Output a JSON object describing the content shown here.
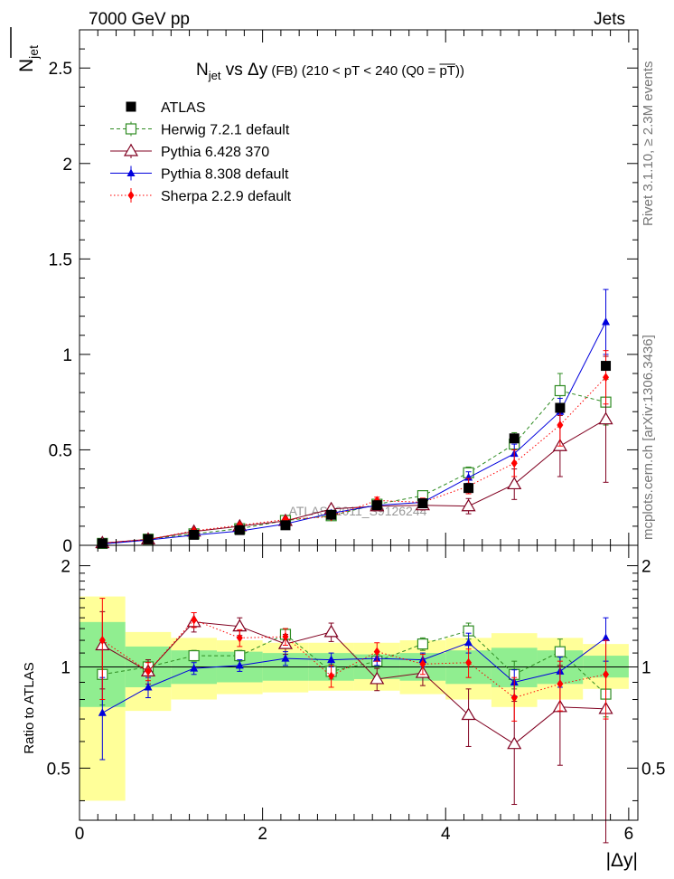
{
  "header": {
    "energy_label": "7000 GeV pp",
    "category_label": "Jets",
    "side_rivet": "Rivet 3.1.10, ≥ 2.3M events",
    "side_url": "mcplots.cern.ch [arXiv:1306.3436]",
    "watermark": "ATLAS_2011_S9126244"
  },
  "colors": {
    "atlas": "#000000",
    "herwig": "#2e8b22",
    "pythia6": "#800020",
    "pythia8": "#0000dd",
    "sherpa": "#ff0000",
    "band_outer": "#ffff99",
    "band_inner": "#90ee90"
  },
  "chart_data": [
    {
      "type": "line",
      "panel": "main",
      "title_parts": {
        "prefix": "N",
        "sub": "jet",
        "vs": " vs Δy",
        "fb": " (FB)",
        "cut": " (210 < pT < 240 (Q0 = ",
        "q0": "pT",
        "close": "))"
      },
      "ylabel_parts": {
        "main": "N",
        "sub": "jet"
      },
      "xlabel": "|Δy|",
      "xlim": [
        0,
        6.1
      ],
      "ylim": [
        0,
        2.7
      ],
      "x_ticks": [
        0,
        2,
        4,
        6
      ],
      "x_tick_labels": [
        "0",
        "2",
        "4",
        "6"
      ],
      "y_ticks": [
        0,
        0.5,
        1,
        1.5,
        2,
        2.5
      ],
      "y_tick_labels": [
        "0",
        "0.5",
        "1",
        "1.5",
        "2",
        "2.5"
      ],
      "grid": false,
      "legend_position": "top-left",
      "x": [
        0.25,
        0.75,
        1.25,
        1.75,
        2.25,
        2.75,
        3.25,
        3.75,
        4.25,
        4.75,
        5.25,
        5.75
      ],
      "series": [
        {
          "key": "atlas",
          "name": "ATLAS",
          "marker": "square-filled",
          "line": "none",
          "values": [
            0.01,
            0.032,
            0.055,
            0.08,
            0.105,
            0.16,
            0.21,
            0.22,
            0.3,
            0.56,
            0.72,
            0.94
          ]
        },
        {
          "key": "herwig",
          "name": "Herwig 7.2.1 default",
          "marker": "square-open",
          "line": "dashed",
          "values": [
            0.01,
            0.032,
            0.06,
            0.087,
            0.13,
            0.155,
            0.215,
            0.26,
            0.38,
            0.53,
            0.81,
            0.75
          ],
          "errors": [
            0.003,
            0.004,
            0.005,
            0.006,
            0.008,
            0.01,
            0.014,
            0.018,
            0.03,
            0.06,
            0.09,
            0.12
          ]
        },
        {
          "key": "pythia6",
          "name": "Pythia 6.428 370",
          "marker": "triangle-open",
          "line": "solid",
          "values": [
            0.012,
            0.031,
            0.072,
            0.1,
            0.128,
            0.19,
            0.205,
            0.21,
            0.205,
            0.32,
            0.52,
            0.66
          ],
          "errors": [
            0.004,
            0.005,
            0.007,
            0.009,
            0.012,
            0.015,
            0.02,
            0.025,
            0.04,
            0.08,
            0.16,
            0.33
          ]
        },
        {
          "key": "pythia8",
          "name": "Pythia 8.308 default",
          "marker": "triangle-filled",
          "line": "solid",
          "values": [
            0.007,
            0.028,
            0.053,
            0.075,
            0.112,
            0.168,
            0.21,
            0.225,
            0.355,
            0.48,
            0.7,
            1.17
          ],
          "errors": [
            0.002,
            0.003,
            0.004,
            0.005,
            0.007,
            0.01,
            0.013,
            0.017,
            0.03,
            0.05,
            0.07,
            0.17
          ]
        },
        {
          "key": "sherpa",
          "name": "Sherpa 2.2.9 default",
          "marker": "diamond-filled",
          "line": "dotted",
          "values": [
            0.012,
            0.031,
            0.076,
            0.105,
            0.135,
            0.15,
            0.235,
            0.225,
            0.31,
            0.43,
            0.63,
            0.88
          ],
          "errors": [
            0.003,
            0.004,
            0.006,
            0.008,
            0.01,
            0.012,
            0.017,
            0.022,
            0.04,
            0.07,
            0.11,
            0.14
          ]
        }
      ]
    },
    {
      "type": "line",
      "panel": "ratio",
      "ylabel": "Ratio to ATLAS",
      "xlim": [
        0,
        6.1
      ],
      "ylim": [
        0.35,
        2.3
      ],
      "y_ticks": [
        0.5,
        1,
        2
      ],
      "y_tick_labels": [
        "0.5",
        "1",
        "2"
      ],
      "reference": 1,
      "bins": [
        0,
        0.5,
        1,
        1.5,
        2,
        2.5,
        3,
        3.5,
        4,
        4.5,
        5,
        5.5,
        6
      ],
      "band_outer": [
        [
          0.4,
          1.62
        ],
        [
          0.74,
          1.27
        ],
        [
          0.8,
          1.22
        ],
        [
          0.83,
          1.2
        ],
        [
          0.84,
          1.18
        ],
        [
          0.85,
          1.18
        ],
        [
          0.85,
          1.18
        ],
        [
          0.83,
          1.2
        ],
        [
          0.8,
          1.22
        ],
        [
          0.76,
          1.26
        ],
        [
          0.8,
          1.22
        ],
        [
          0.86,
          1.17
        ]
      ],
      "band_inner": [
        [
          0.76,
          1.36
        ],
        [
          0.87,
          1.15
        ],
        [
          0.89,
          1.12
        ],
        [
          0.9,
          1.11
        ],
        [
          0.91,
          1.1
        ],
        [
          0.91,
          1.1
        ],
        [
          0.92,
          1.09
        ],
        [
          0.91,
          1.1
        ],
        [
          0.89,
          1.12
        ],
        [
          0.87,
          1.14
        ],
        [
          0.89,
          1.12
        ],
        [
          0.93,
          1.08
        ]
      ],
      "x": [
        0.25,
        0.75,
        1.25,
        1.75,
        2.25,
        2.75,
        3.25,
        3.75,
        4.25,
        4.75,
        5.25,
        5.75
      ],
      "series": [
        {
          "key": "herwig",
          "name": "Herwig 7.2.1 default",
          "marker": "square-open",
          "line": "dashed",
          "values": [
            0.95,
            1.0,
            1.08,
            1.08,
            1.25,
            0.97,
            1.04,
            1.17,
            1.28,
            0.95,
            1.11,
            0.83
          ],
          "errors": [
            0.18,
            0.05,
            0.04,
            0.04,
            0.05,
            0.05,
            0.05,
            0.05,
            0.07,
            0.09,
            0.1,
            0.12
          ]
        },
        {
          "key": "pythia6",
          "name": "Pythia 6.428 370",
          "marker": "triangle-open",
          "line": "solid",
          "values": [
            1.16,
            0.97,
            1.36,
            1.32,
            1.17,
            1.27,
            0.92,
            0.96,
            0.72,
            0.59,
            0.76,
            0.75
          ],
          "errors": [
            0.3,
            0.08,
            0.09,
            0.08,
            0.08,
            0.08,
            0.07,
            0.08,
            0.14,
            0.2,
            0.25,
            0.45
          ]
        },
        {
          "key": "pythia8",
          "name": "Pythia 8.308 default",
          "marker": "triangle-filled",
          "line": "solid",
          "values": [
            0.73,
            0.87,
            0.99,
            1.01,
            1.06,
            1.05,
            1.06,
            1.05,
            1.18,
            0.9,
            0.97,
            1.22
          ],
          "errors": [
            0.2,
            0.06,
            0.04,
            0.04,
            0.05,
            0.05,
            0.05,
            0.05,
            0.08,
            0.08,
            0.1,
            0.18
          ]
        },
        {
          "key": "sherpa",
          "name": "Sherpa 2.2.9 default",
          "marker": "diamond-filled",
          "line": "dotted",
          "values": [
            1.2,
            0.97,
            1.38,
            1.22,
            1.23,
            0.94,
            1.11,
            1.02,
            1.03,
            0.81,
            0.89,
            0.95
          ],
          "errors": [
            0.4,
            0.06,
            0.07,
            0.07,
            0.07,
            0.07,
            0.07,
            0.07,
            0.1,
            0.12,
            0.15,
            0.25
          ]
        }
      ]
    }
  ]
}
